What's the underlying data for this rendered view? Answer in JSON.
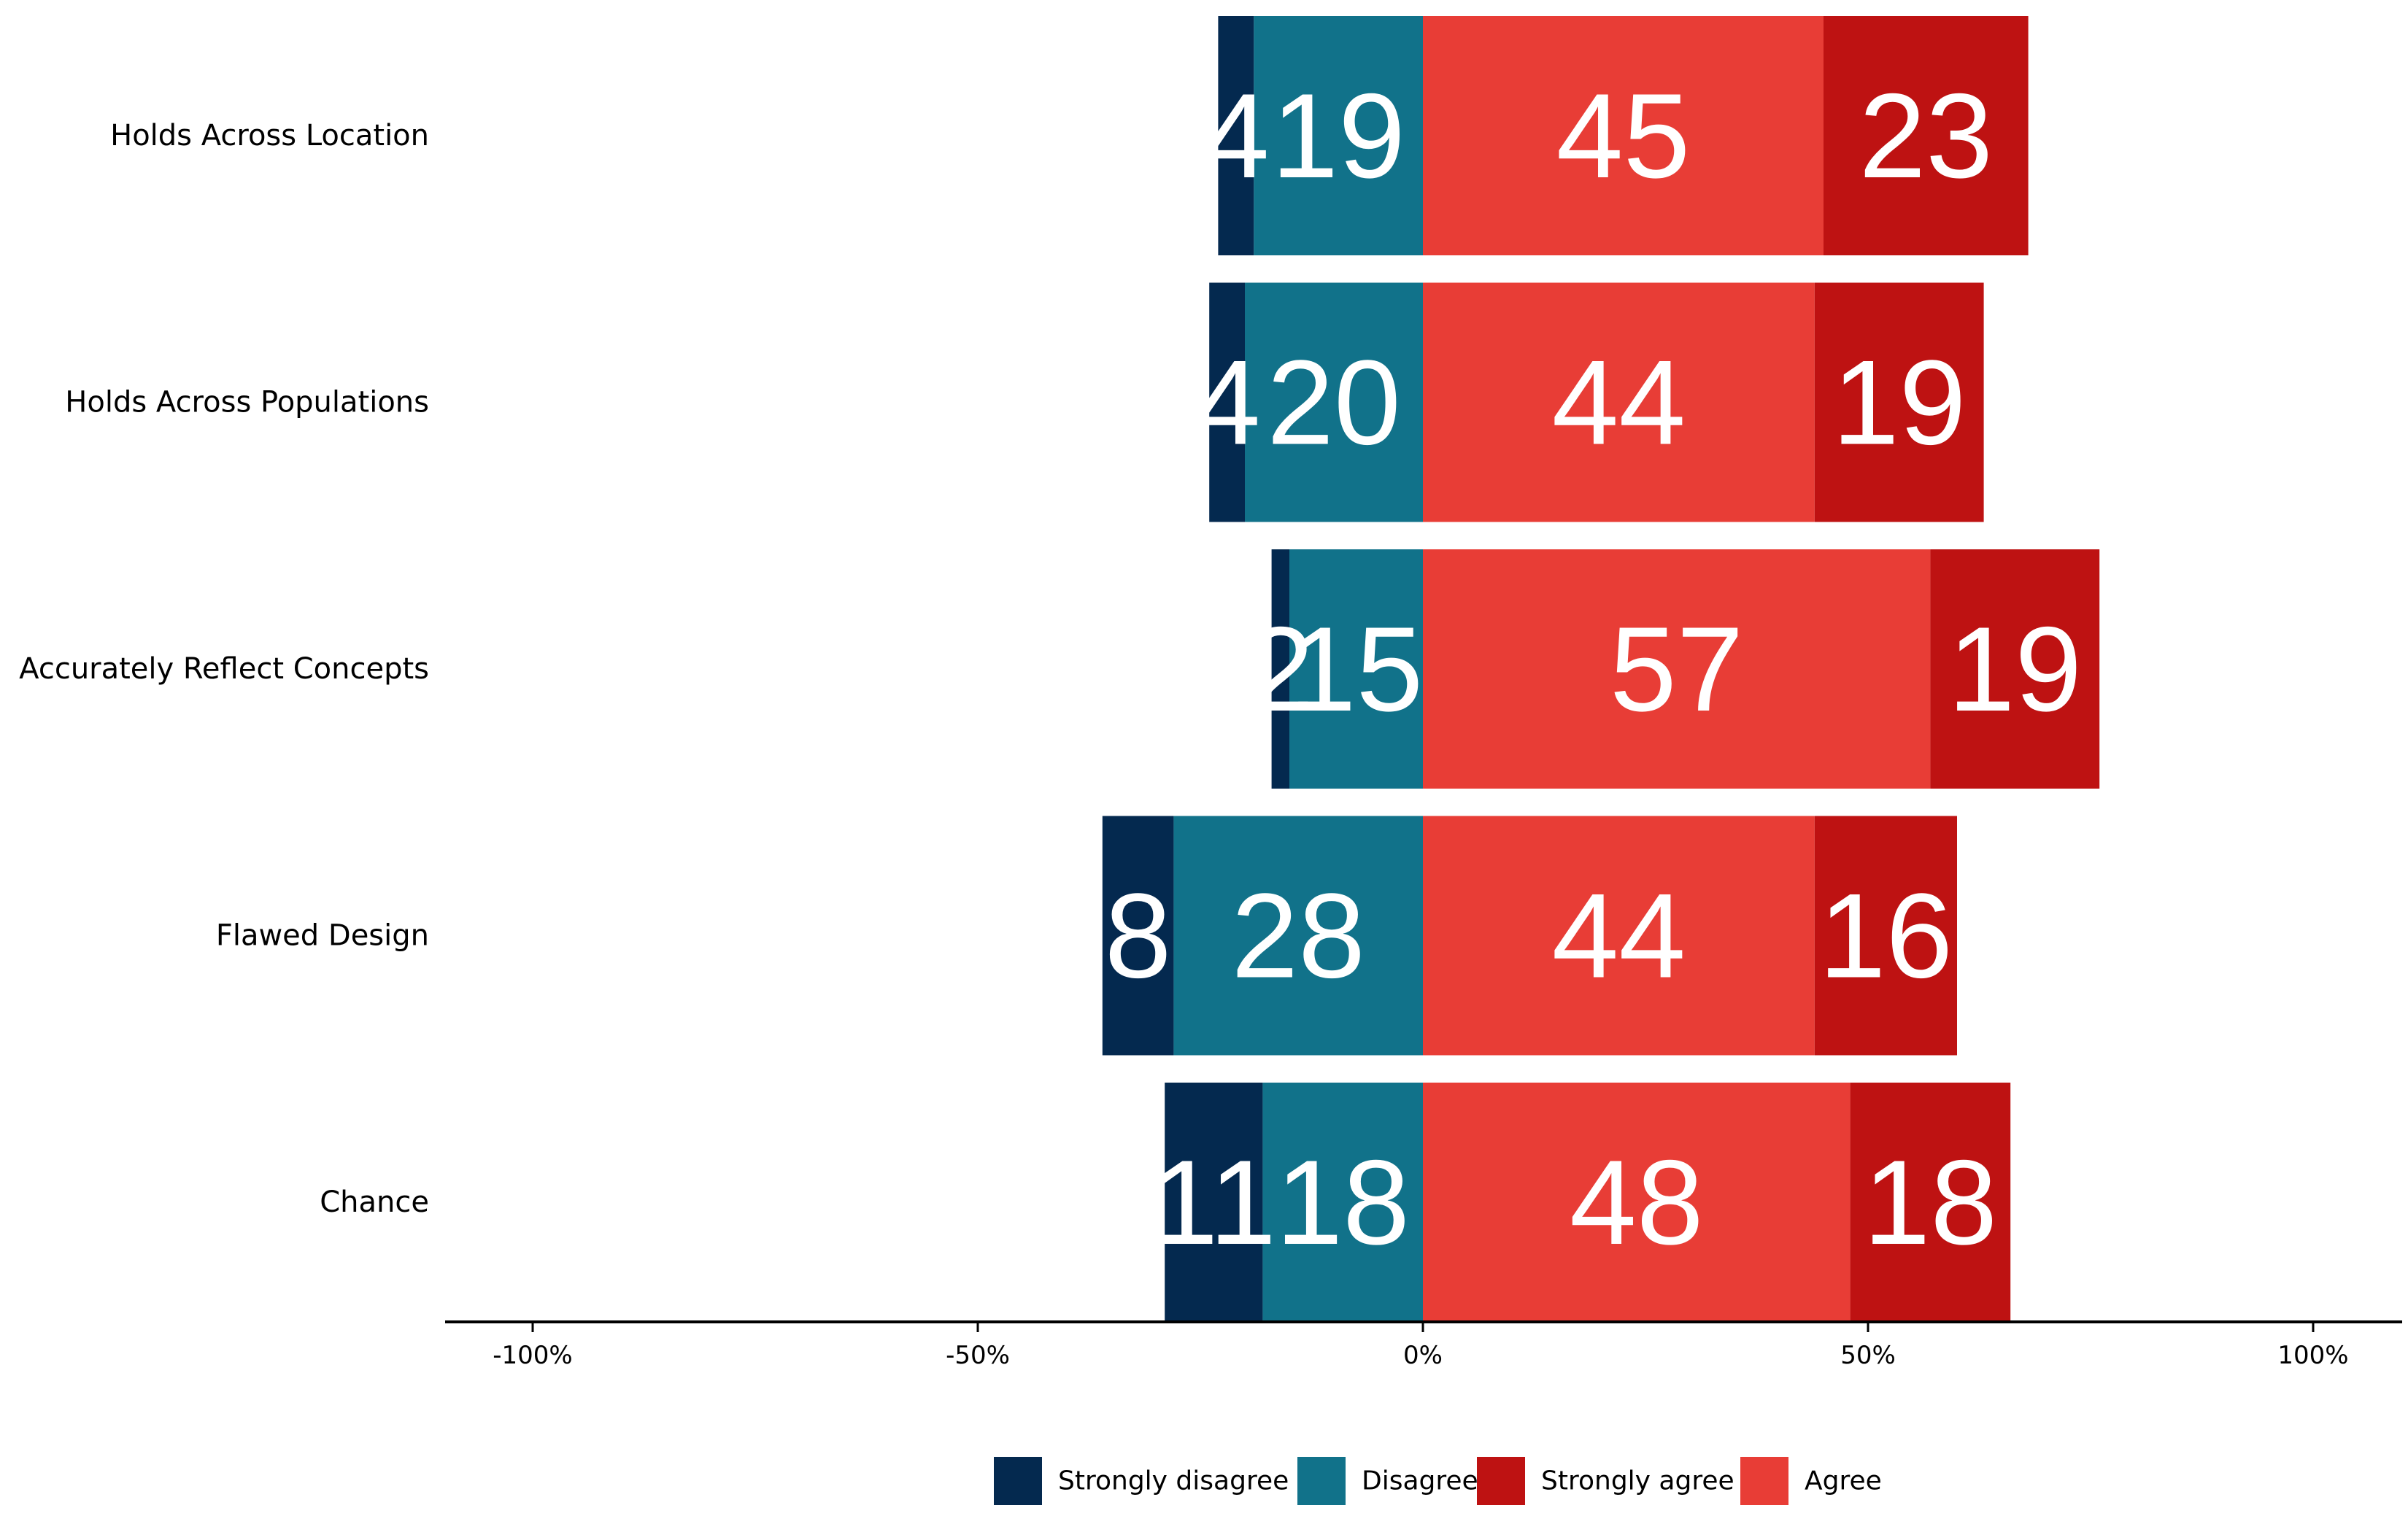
{
  "chart_data": {
    "type": "bar",
    "orientation": "horizontal-diverging-stacked",
    "title": "",
    "xlabel": "",
    "ylabel": "",
    "xlim": [
      -110,
      110
    ],
    "x_ticks": [
      -100,
      -50,
      0,
      50,
      100
    ],
    "x_tick_labels": [
      "-100%",
      "-50%",
      "0%",
      "50%",
      "100%"
    ],
    "grid": false,
    "legend_position": "bottom",
    "categories": [
      "Holds Across Location",
      "Holds Across Populations",
      "Accurately Reflect Concepts",
      "Flawed Design",
      "Chance"
    ],
    "series": [
      {
        "name": "Strongly disagree",
        "key": "strongly_disagree",
        "side": "negative",
        "color": "#04294f",
        "values": [
          4,
          4,
          2,
          8,
          11
        ]
      },
      {
        "name": "Disagree",
        "key": "disagree",
        "side": "negative",
        "color": "#11728a",
        "values": [
          19,
          20,
          15,
          28,
          18
        ]
      },
      {
        "name": "Strongly agree",
        "key": "strongly_agree",
        "side": "positive",
        "color": "#be1212",
        "values": [
          23,
          19,
          19,
          16,
          18
        ]
      },
      {
        "name": "Agree",
        "key": "agree",
        "side": "positive",
        "color": "#e83d36",
        "values": [
          45,
          44,
          57,
          44,
          48
        ]
      }
    ],
    "stack_order": {
      "negative_from_zero": [
        "Disagree",
        "Strongly disagree"
      ],
      "positive_from_zero": [
        "Agree",
        "Strongly agree"
      ]
    },
    "legend_order": [
      "Strongly disagree",
      "Disagree",
      "Strongly agree",
      "Agree"
    ]
  }
}
